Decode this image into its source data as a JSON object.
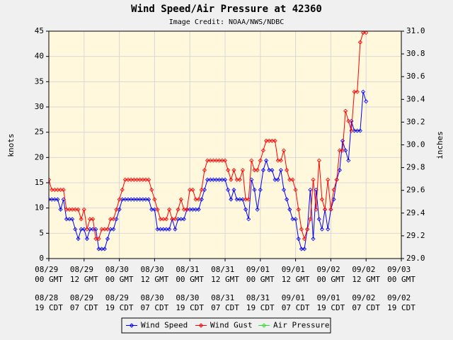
{
  "chart_data": {
    "type": "line",
    "title": "Wind Speed/Air Pressure at 42360",
    "subtitle": "Image Credit: NOAA/NWS/NDBC",
    "ylabel": "knots",
    "y2label": "inches",
    "ylim": [
      0,
      45
    ],
    "yticks": [
      0,
      5,
      10,
      15,
      20,
      25,
      30,
      35,
      40,
      45
    ],
    "y2lim": [
      29,
      31
    ],
    "y2ticks": [
      {
        "value": 29,
        "label": "29.0"
      },
      29.2,
      29.4,
      29.6,
      29.8,
      {
        "value": 30,
        "label": "30.0"
      },
      30.2,
      30.4,
      30.6,
      30.8,
      {
        "value": 31,
        "label": "31.0"
      }
    ],
    "grid": true,
    "legend": "bottom",
    "categories": [
      "08/29 00 GMT",
      null,
      null,
      null,
      null,
      null,
      null,
      null,
      null,
      null,
      null,
      null,
      "08/29 12 GMT",
      null,
      null,
      null,
      null,
      null,
      null,
      null,
      null,
      null,
      null,
      null,
      "08/30 00 GMT",
      null,
      null,
      null,
      null,
      null,
      null,
      null,
      null,
      null,
      null,
      null,
      "08/30 12 GMT",
      null,
      null,
      null,
      null,
      null,
      null,
      null,
      null,
      null,
      null,
      null,
      "08/31 00 GMT",
      null,
      null,
      null,
      null,
      null,
      null,
      null,
      null,
      null,
      null,
      null,
      "08/31 12 GMT",
      null,
      null,
      null,
      null,
      null,
      null,
      null,
      null,
      null,
      null,
      null,
      "09/01 00 GMT",
      null,
      null,
      null,
      null,
      null,
      null,
      null,
      null,
      null,
      null,
      null,
      "09/01 12 GMT",
      null,
      null,
      null,
      null,
      null,
      null,
      null,
      null,
      null,
      null,
      null,
      "09/02 00 GMT",
      null,
      null,
      null,
      null,
      null,
      null,
      null,
      null,
      null,
      null,
      null,
      "09/02 12 GMT",
      null,
      null,
      null,
      null,
      null,
      null,
      null,
      null,
      null,
      null,
      null,
      "09/03 00 GMT"
    ],
    "categories_local": [
      "08/28 19 CDT",
      null,
      null,
      null,
      null,
      null,
      null,
      null,
      null,
      null,
      null,
      null,
      "08/29 07 CDT",
      null,
      null,
      null,
      null,
      null,
      null,
      null,
      null,
      null,
      null,
      null,
      "08/29 19 CDT",
      null,
      null,
      null,
      null,
      null,
      null,
      null,
      null,
      null,
      null,
      null,
      "08/30 07 CDT",
      null,
      null,
      null,
      null,
      null,
      null,
      null,
      null,
      null,
      null,
      null,
      "08/30 19 CDT",
      null,
      null,
      null,
      null,
      null,
      null,
      null,
      null,
      null,
      null,
      null,
      "08/31 07 CDT",
      null,
      null,
      null,
      null,
      null,
      null,
      null,
      null,
      null,
      null,
      null,
      "08/31 19 CDT",
      null,
      null,
      null,
      null,
      null,
      null,
      null,
      null,
      null,
      null,
      null,
      "09/01 07 CDT",
      null,
      null,
      null,
      null,
      null,
      null,
      null,
      null,
      null,
      null,
      null,
      "09/01 19 CDT",
      null,
      null,
      null,
      null,
      null,
      null,
      null,
      null,
      null,
      null,
      null,
      "09/02 07 CDT",
      null,
      null,
      null,
      null,
      null,
      null,
      null,
      null,
      null,
      null,
      null,
      "09/02 19 CDT"
    ],
    "series": [
      {
        "name": "Wind Speed",
        "color": "#0000ff",
        "values": [
          11.7,
          11.7,
          11.7,
          11.7,
          9.7,
          11.7,
          7.8,
          7.8,
          7.8,
          5.8,
          3.9,
          5.8,
          5.8,
          3.9,
          5.8,
          5.8,
          5.8,
          1.9,
          1.9,
          1.9,
          3.9,
          5.8,
          5.8,
          7.8,
          9.7,
          11.7,
          11.7,
          11.7,
          11.7,
          11.7,
          11.7,
          11.7,
          11.7,
          11.7,
          11.7,
          9.7,
          9.7,
          5.8,
          5.8,
          5.8,
          5.8,
          5.8,
          7.8,
          5.8,
          7.8,
          7.8,
          7.8,
          9.7,
          9.7,
          9.7,
          9.7,
          9.7,
          11.7,
          13.6,
          15.6,
          15.6,
          15.6,
          15.6,
          15.6,
          15.6,
          15.6,
          13.6,
          11.7,
          13.6,
          11.7,
          11.7,
          11.7,
          9.7,
          7.8,
          15.6,
          13.6,
          9.7,
          13.6,
          17.5,
          19.4,
          17.5,
          17.5,
          15.6,
          15.6,
          17.5,
          13.6,
          11.7,
          9.7,
          7.8,
          7.8,
          3.9,
          1.9,
          1.9,
          5.8,
          13.6,
          3.9,
          13.6,
          7.8,
          5.8,
          9.7,
          5.8,
          9.7,
          11.7,
          15.6,
          17.5,
          23.3,
          21.4,
          19.4,
          27.2,
          25.3,
          25.3,
          25.3,
          33.0,
          31.1,
          null,
          null,
          null,
          null,
          null,
          null,
          null,
          null,
          null,
          null,
          null,
          null
        ]
      },
      {
        "name": "Wind Gust",
        "color": "#ff0000",
        "values": [
          15.6,
          13.6,
          13.6,
          13.6,
          13.6,
          13.6,
          9.7,
          9.7,
          9.7,
          9.7,
          9.7,
          7.8,
          9.7,
          5.8,
          7.8,
          7.8,
          3.9,
          3.9,
          5.8,
          5.8,
          5.8,
          7.8,
          7.8,
          9.7,
          11.7,
          13.6,
          15.6,
          15.6,
          15.6,
          15.6,
          15.6,
          15.6,
          15.6,
          15.6,
          15.6,
          13.6,
          11.7,
          9.7,
          7.8,
          7.8,
          7.8,
          9.7,
          7.8,
          7.8,
          9.7,
          11.7,
          9.7,
          9.7,
          13.6,
          13.6,
          11.7,
          11.7,
          13.6,
          17.5,
          19.4,
          19.4,
          19.4,
          19.4,
          19.4,
          19.4,
          19.4,
          17.5,
          15.6,
          17.5,
          15.6,
          15.6,
          17.5,
          11.7,
          11.7,
          19.4,
          17.5,
          17.5,
          19.4,
          21.4,
          23.3,
          23.3,
          23.3,
          23.3,
          19.4,
          19.4,
          21.4,
          17.5,
          15.6,
          15.6,
          13.6,
          9.7,
          5.8,
          3.9,
          5.8,
          7.8,
          15.6,
          9.7,
          19.4,
          11.7,
          9.7,
          15.6,
          9.7,
          13.6,
          15.6,
          21.4,
          21.4,
          29.2,
          27.2,
          25.3,
          33.0,
          33.0,
          42.8,
          44.7,
          44.7,
          null,
          null,
          null,
          null,
          null,
          null,
          null,
          null,
          null,
          null,
          null,
          null
        ]
      },
      {
        "name": "Air Pressure",
        "color": "#33dd33",
        "axis": "y2",
        "values": [
          null,
          null,
          null,
          null,
          null,
          null,
          null,
          null,
          null,
          null,
          null,
          null,
          null,
          null,
          null,
          null,
          null,
          null,
          null,
          null,
          null,
          null,
          null,
          null,
          null,
          null,
          null,
          null,
          null,
          null,
          null,
          null,
          null,
          null,
          null,
          null,
          null,
          null,
          null,
          null,
          null,
          null,
          null,
          null,
          null,
          null,
          null,
          null,
          null,
          null,
          null,
          null,
          null,
          null,
          null,
          null,
          null,
          null,
          null,
          null,
          null,
          null,
          null,
          null,
          null,
          null,
          null,
          null,
          null,
          null,
          null,
          null,
          null,
          null,
          null,
          null,
          null,
          null,
          null,
          null,
          null,
          null,
          null,
          null,
          null,
          null,
          null,
          null,
          null,
          null,
          null,
          null,
          null,
          null,
          null,
          null,
          null,
          null,
          null,
          null,
          null,
          null,
          null,
          null,
          null,
          null,
          null,
          null,
          null,
          null,
          null,
          null,
          null,
          null,
          null,
          null,
          null,
          null,
          null,
          null,
          null
        ]
      }
    ]
  }
}
